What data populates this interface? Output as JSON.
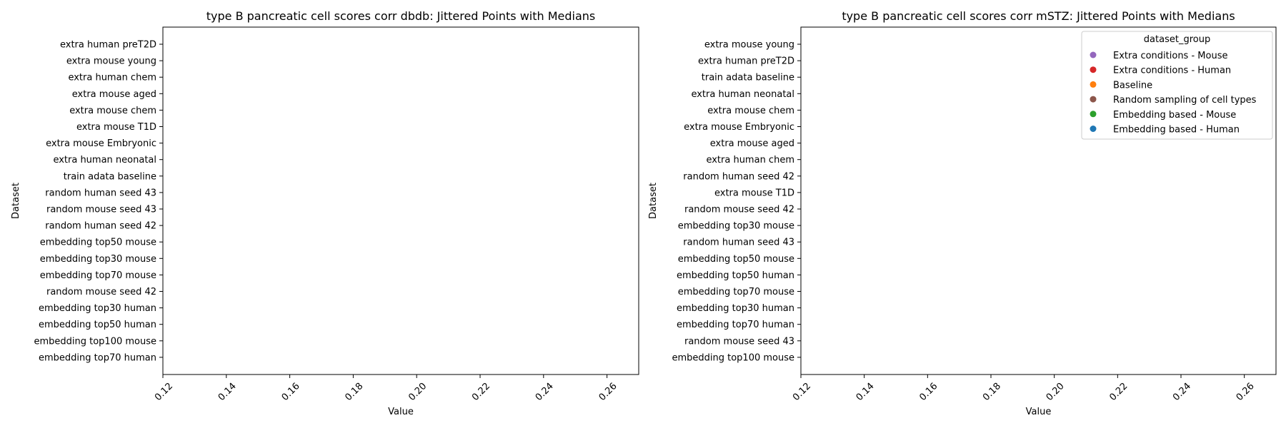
{
  "chart_data": [
    {
      "type": "scatter",
      "title": "type B pancreatic cell scores corr dbdb: Jittered Points with Medians",
      "xlabel": "Value",
      "ylabel": "Dataset",
      "xlim": [
        0.12,
        0.27
      ],
      "xticks": [
        "0.12",
        "0.14",
        "0.16",
        "0.18",
        "0.20",
        "0.22",
        "0.24",
        "0.26"
      ],
      "xtick_values": [
        0.12,
        0.14,
        0.16,
        0.18,
        0.2,
        0.22,
        0.24,
        0.26
      ],
      "categories": [
        "extra human preT2D",
        "extra mouse young",
        "extra human chem",
        "extra mouse aged",
        "extra mouse chem",
        "extra mouse T1D",
        "extra mouse Embryonic",
        "extra human neonatal",
        "train adata baseline",
        "random human seed 43",
        "random mouse seed 43",
        "random human seed 42",
        "embedding top50 mouse",
        "embedding top30 mouse",
        "embedding top70 mouse",
        "random mouse seed 42",
        "embedding top30 human",
        "embedding top50 human",
        "embedding top100 mouse",
        "embedding top70 human"
      ],
      "series": [],
      "legend": null,
      "grid": false
    },
    {
      "type": "scatter",
      "title": "type B pancreatic cell scores corr mSTZ: Jittered Points with Medians",
      "xlabel": "Value",
      "ylabel": "Dataset",
      "xlim": [
        0.12,
        0.27
      ],
      "xticks": [
        "0.12",
        "0.14",
        "0.16",
        "0.18",
        "0.20",
        "0.22",
        "0.24",
        "0.26"
      ],
      "xtick_values": [
        0.12,
        0.14,
        0.16,
        0.18,
        0.2,
        0.22,
        0.24,
        0.26
      ],
      "categories": [
        "extra mouse young",
        "extra human preT2D",
        "train adata baseline",
        "extra human neonatal",
        "extra mouse chem",
        "extra mouse Embryonic",
        "extra mouse aged",
        "extra human chem",
        "random human seed 42",
        "extra mouse T1D",
        "random mouse seed 42",
        "embedding top30 mouse",
        "random human seed 43",
        "embedding top50 mouse",
        "embedding top50 human",
        "embedding top70 mouse",
        "embedding top30 human",
        "embedding top70 human",
        "random mouse seed 43",
        "embedding top100 mouse"
      ],
      "series": [],
      "legend": {
        "title": "dataset_group",
        "placement": "top-right",
        "entries": [
          {
            "label": "Extra conditions - Mouse",
            "color": "#9467bd"
          },
          {
            "label": "Extra conditions - Human",
            "color": "#d62728"
          },
          {
            "label": "Baseline",
            "color": "#ff7f0e"
          },
          {
            "label": "Random sampling of cell types",
            "color": "#8c564b"
          },
          {
            "label": "Embedding based - Mouse",
            "color": "#2ca02c"
          },
          {
            "label": "Embedding based - Human",
            "color": "#1f77b4"
          }
        ]
      },
      "grid": false
    }
  ]
}
